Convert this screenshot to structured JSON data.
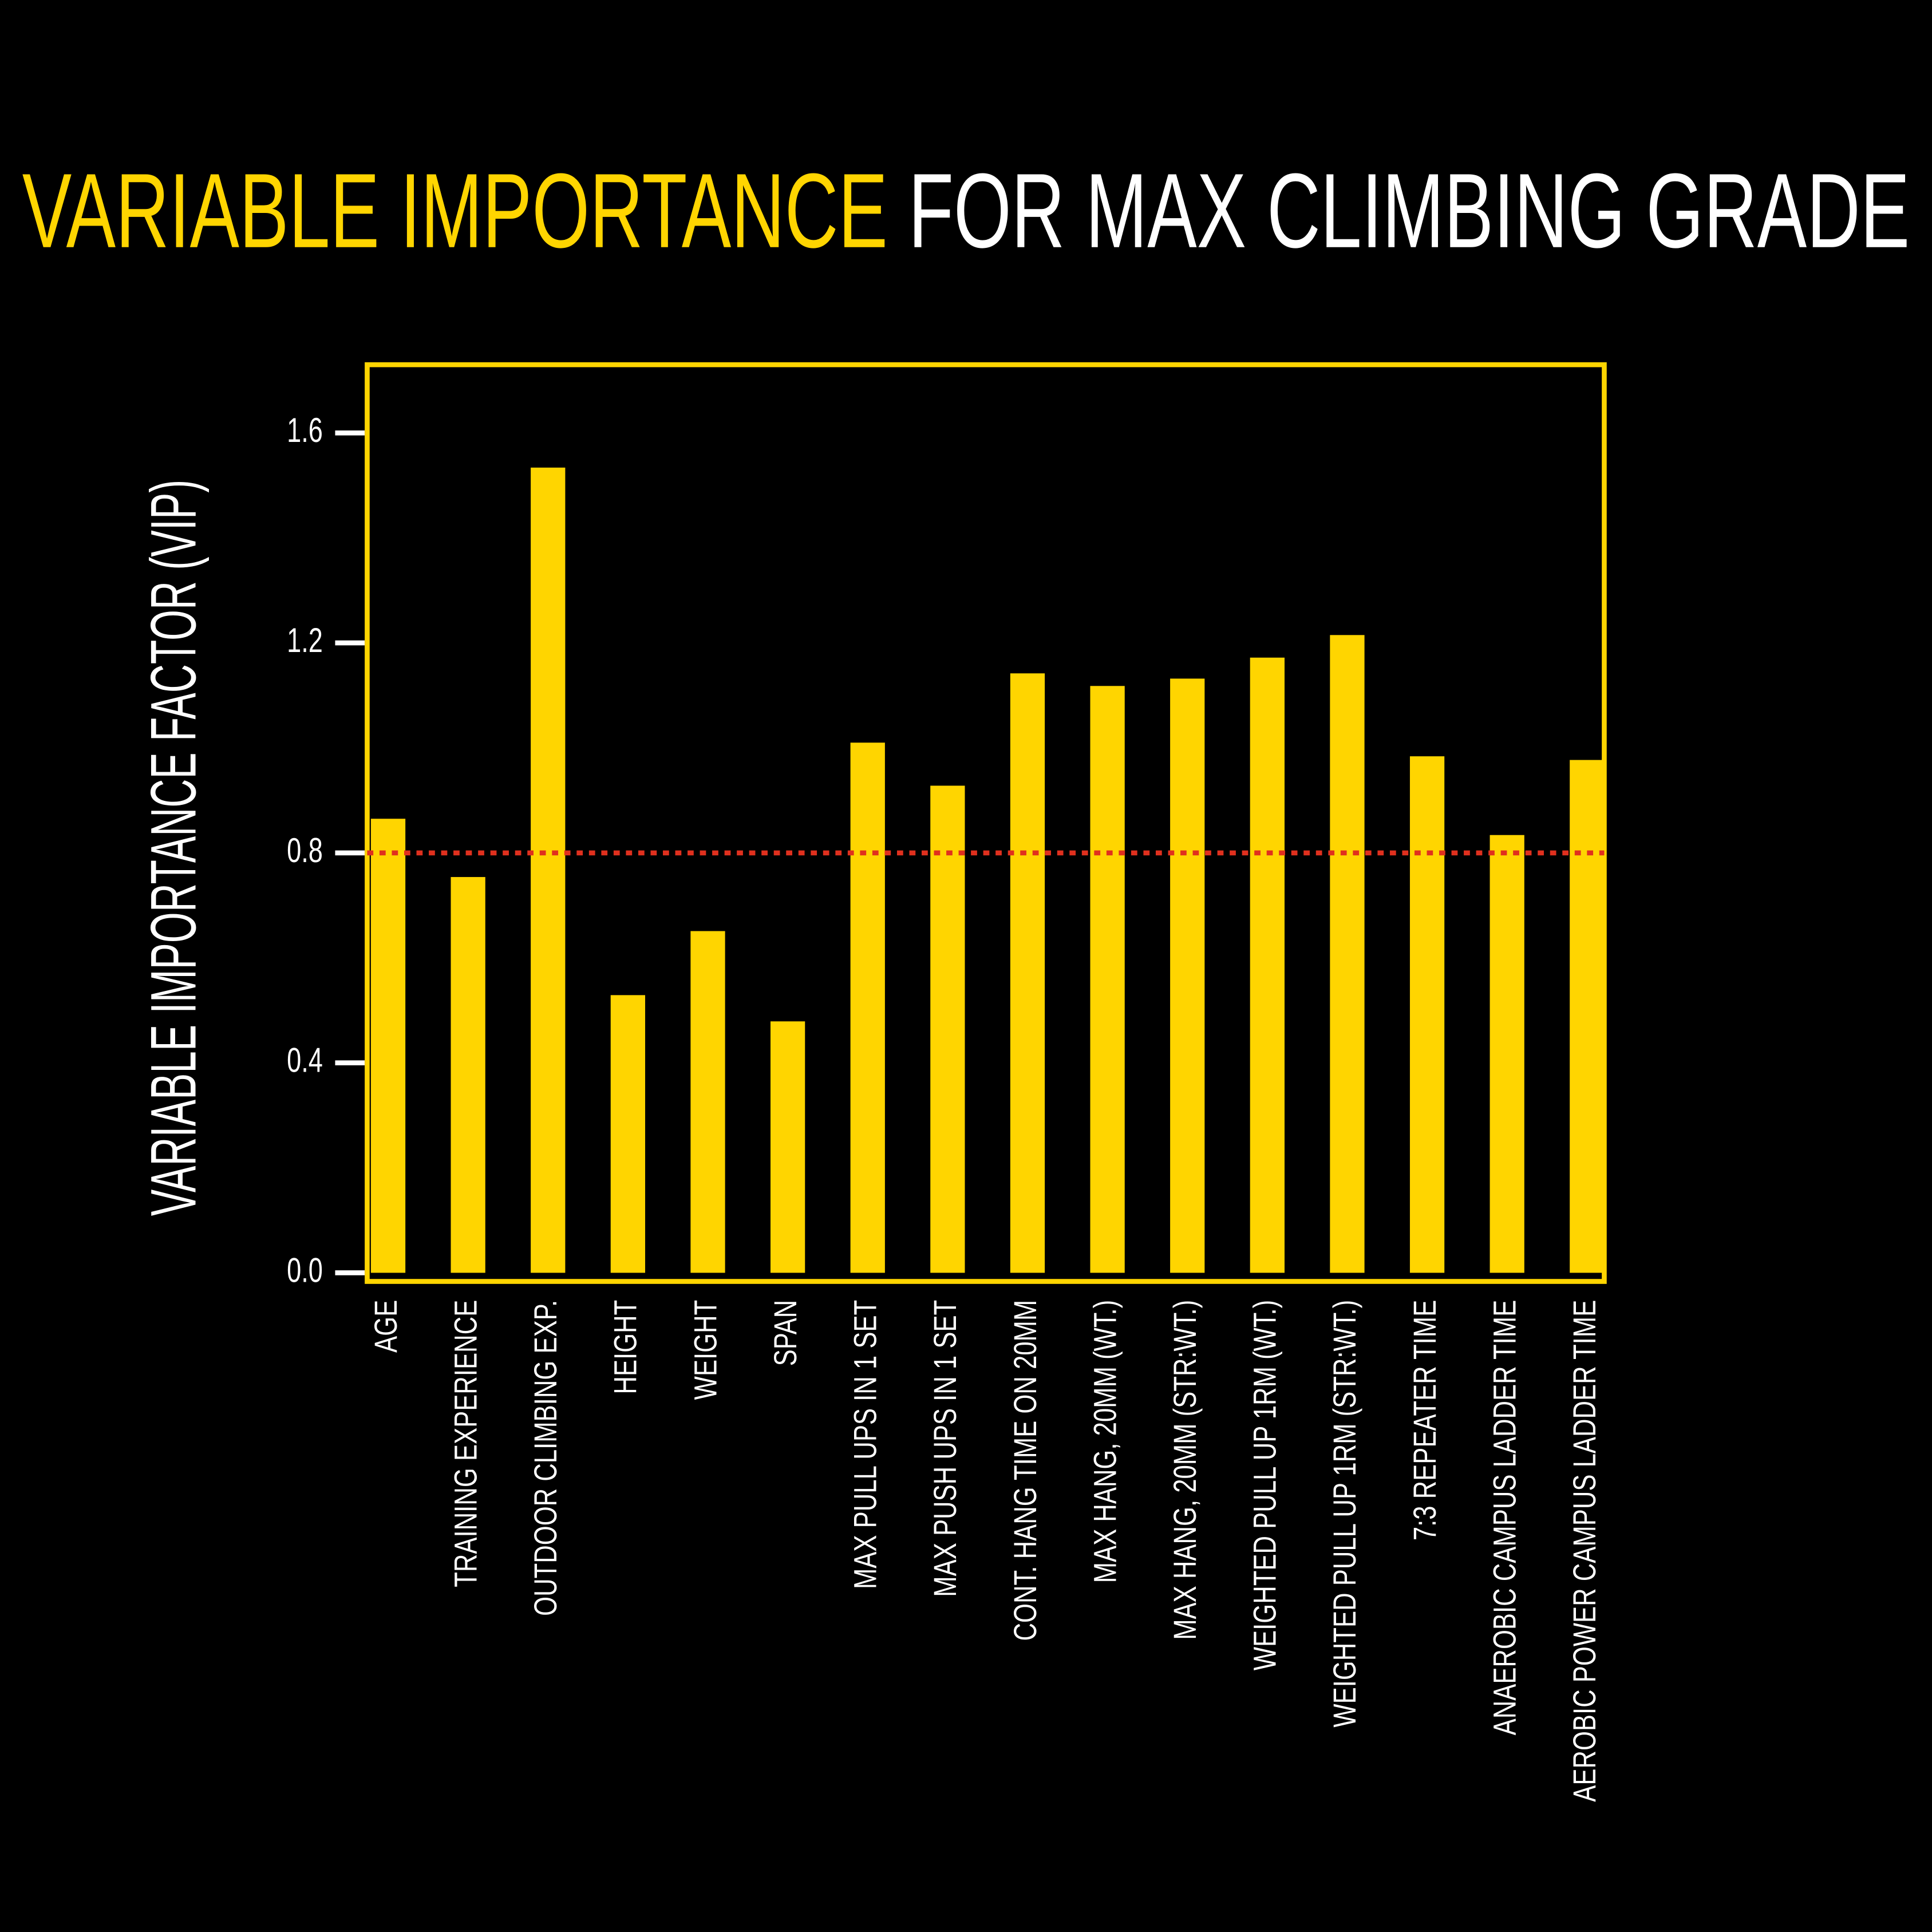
{
  "chart_data": {
    "type": "bar",
    "title_highlight": "VARIABLE IMPORTANCE",
    "title": "FOR MAX CLIMBING GRADE",
    "y_label": "VARIABLE IMPORTANCE FACTOR (VIP)",
    "categories": [
      "AGE",
      "TRAINING EXPERIENCE",
      "OUTDOOR CLIMBING EXP.",
      "HEIGHT",
      "WEIGHT",
      "SPAN",
      "MAX PULL UPS IN 1 SET",
      "MAX PUSH UPS IN 1 SET",
      "CONT. HANG TIME ON 20MM",
      "MAX HANG,  20MM  (WT.)",
      "MAX HANG, 20MM  (STR:WT.)",
      "WEIGHTED PULL UP 1RM (WT.)",
      "WEIGHTED PULL UP 1RM (STR:WT.)",
      "7:3 REPEATER TIME",
      "ANAEROBIC CAMPUS LADDER TIME",
      "AEROBIC  POWER CAMPUS LADDER TIME"
    ],
    "values": [
      0.865,
      0.754,
      1.534,
      0.529,
      0.651,
      0.479,
      1.01,
      0.928,
      1.142,
      1.118,
      1.132,
      1.172,
      1.215,
      0.984,
      0.834,
      0.977
    ],
    "color": "#ffd500",
    "threshold": 0.8,
    "threshold_color": "#e0301e",
    "ylim": [
      0,
      1.73
    ],
    "yticks": [
      {
        "value": 0,
        "label": "0.0"
      },
      0.4,
      0.8,
      1.2,
      1.6
    ]
  }
}
